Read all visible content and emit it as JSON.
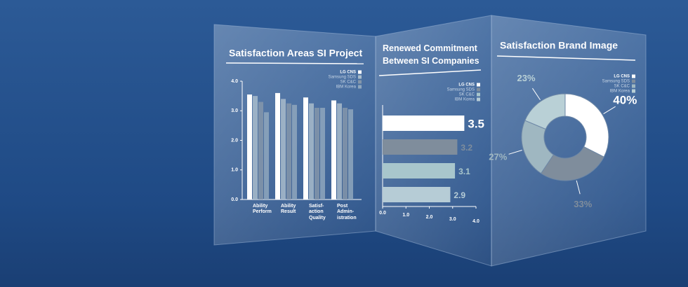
{
  "chart_data": [
    {
      "type": "bar",
      "title": "Satisfaction Areas SI Project",
      "categories": [
        "Ability\nPerform",
        "Ability\nResult",
        "Satisf-\naction\nQuality",
        "Post\nAdmin-\nistration"
      ],
      "series": [
        {
          "name": "LG CNS",
          "color": "#ffffff",
          "values": [
            3.55,
            3.6,
            3.45,
            3.35
          ]
        },
        {
          "name": "Samsung SDS",
          "color": "#a9bccb",
          "values": [
            3.5,
            3.4,
            3.25,
            3.25
          ]
        },
        {
          "name": "SK C&C",
          "color": "#8597aa",
          "values": [
            3.3,
            3.25,
            3.1,
            3.1
          ]
        },
        {
          "name": "IBM Korea",
          "color": "#8fa7bd",
          "values": [
            2.95,
            3.2,
            3.1,
            3.05
          ]
        }
      ],
      "ylim": [
        0,
        4
      ],
      "yticks": [
        {
          "value": 0,
          "label": "0.0"
        },
        {
          "value": 1,
          "label": "1.0"
        },
        {
          "value": 2,
          "label": "2.0"
        },
        {
          "value": 3,
          "label": "3.0"
        },
        {
          "value": 4,
          "label": "4.0"
        }
      ]
    },
    {
      "type": "hbar",
      "title": "Renewed Commitment\nBetween SI Companies",
      "series": [
        {
          "name": "LG CNS",
          "color": "#ffffff",
          "values": [
            3.5
          ]
        },
        {
          "name": "Samsung SDS",
          "color": "#7f8d9c",
          "values": [
            3.2
          ]
        },
        {
          "name": "SK C&C",
          "color": "#a8c6cc",
          "values": [
            3.1
          ]
        },
        {
          "name": "IBM Korea",
          "color": "#b6ccd6",
          "values": [
            2.9
          ]
        }
      ],
      "xlim": [
        0,
        4
      ],
      "xticks": [
        {
          "value": 0,
          "label": "0.0"
        },
        {
          "value": 1,
          "label": "1.0"
        },
        {
          "value": 2,
          "label": "2.0"
        },
        {
          "value": 3,
          "label": "3.0"
        },
        {
          "value": 4,
          "label": "4.0"
        }
      ]
    },
    {
      "type": "donut",
      "title": "Satisfaction Brand Image",
      "categories": [
        "LG CNS",
        "Samsung SDS",
        "SK C&C",
        "IBM Korea"
      ],
      "values": [
        40,
        33,
        27,
        23
      ],
      "value_labels": [
        "40%",
        "33%",
        "27%",
        "23%"
      ],
      "colors": [
        "#ffffff",
        "#7f8d9c",
        "#9fb7c1",
        "#b9d0d6"
      ]
    }
  ]
}
